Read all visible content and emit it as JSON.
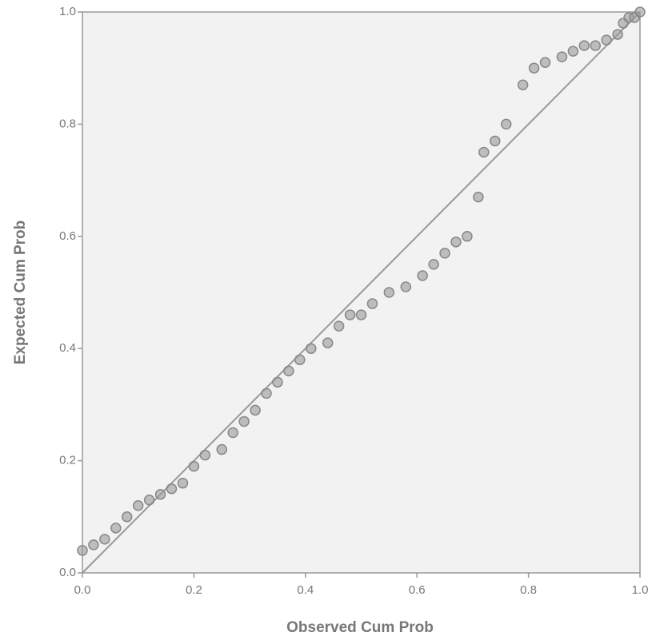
{
  "chart_data": {
    "type": "scatter",
    "xlabel": "Observed Cum Prob",
    "ylabel": "Expected Cum Prob",
    "x": [
      0.0,
      0.02,
      0.04,
      0.06,
      0.08,
      0.1,
      0.12,
      0.14,
      0.16,
      0.18,
      0.2,
      0.22,
      0.25,
      0.27,
      0.29,
      0.31,
      0.33,
      0.35,
      0.37,
      0.39,
      0.41,
      0.44,
      0.46,
      0.48,
      0.5,
      0.52,
      0.55,
      0.58,
      0.61,
      0.63,
      0.65,
      0.67,
      0.69,
      0.71,
      0.72,
      0.74,
      0.76,
      0.79,
      0.81,
      0.83,
      0.86,
      0.88,
      0.9,
      0.92,
      0.94,
      0.96,
      0.97,
      0.98,
      0.99,
      1.0
    ],
    "y": [
      0.04,
      0.05,
      0.06,
      0.08,
      0.1,
      0.12,
      0.13,
      0.14,
      0.15,
      0.16,
      0.19,
      0.21,
      0.22,
      0.25,
      0.27,
      0.29,
      0.32,
      0.34,
      0.36,
      0.38,
      0.4,
      0.41,
      0.44,
      0.46,
      0.46,
      0.48,
      0.5,
      0.51,
      0.53,
      0.55,
      0.57,
      0.59,
      0.6,
      0.67,
      0.75,
      0.77,
      0.8,
      0.87,
      0.9,
      0.91,
      0.92,
      0.93,
      0.94,
      0.94,
      0.95,
      0.96,
      0.98,
      0.99,
      0.99,
      1.0
    ],
    "color": "#999999",
    "xlim": [
      0,
      1
    ],
    "ylim": [
      0,
      1
    ],
    "xticks": [
      {
        "value": 0,
        "label": "0.0"
      },
      0.2,
      0.4,
      0.6,
      0.8,
      {
        "value": 1,
        "label": "1.0"
      }
    ],
    "yticks": [
      {
        "value": 0,
        "label": "0.0"
      },
      0.2,
      0.4,
      0.6,
      0.8,
      {
        "value": 1,
        "label": "1.0"
      }
    ]
  }
}
